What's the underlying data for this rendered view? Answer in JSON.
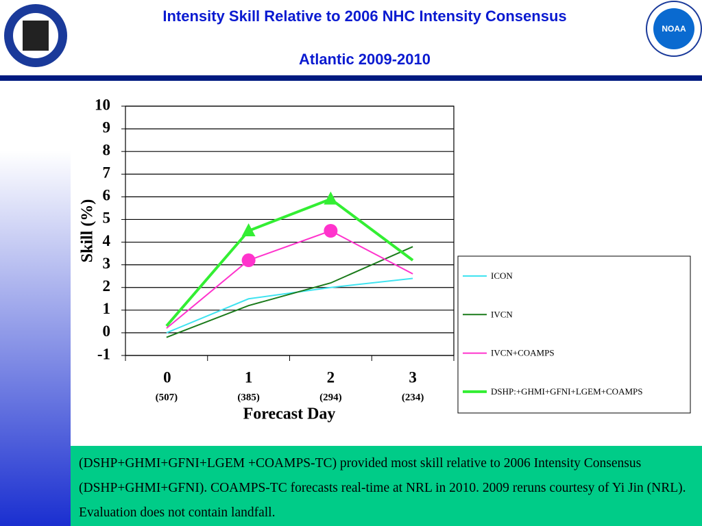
{
  "header": {
    "title": "Intensity Skill Relative to 2006 NHC Intensity Consensus",
    "subtitle": "Atlantic 2009-2010",
    "logo_right": "NOAA"
  },
  "chart_data": {
    "type": "line",
    "ylabel": "Skill (%)",
    "xlabel": "Forecast Day",
    "categories": [
      "0",
      "1",
      "2",
      "3"
    ],
    "category_sublabels": [
      "(507)",
      "(385)",
      "(294)",
      "(234)"
    ],
    "ylim": [
      -1,
      10
    ],
    "yticks": [
      -1,
      0,
      1,
      2,
      3,
      4,
      5,
      6,
      7,
      8,
      9,
      10
    ],
    "grid": true,
    "series": [
      {
        "name": "ICON",
        "color": "#3fe3f0",
        "width": 2,
        "values": [
          0.0,
          1.5,
          2.0,
          2.4
        ]
      },
      {
        "name": "IVCN",
        "color": "#1a7a1a",
        "width": 2,
        "values": [
          -0.2,
          1.2,
          2.2,
          3.8
        ]
      },
      {
        "name": "IVCN+COAMPS",
        "color": "#ff33cc",
        "width": 2,
        "marker": "circle",
        "marker_indices": [
          1,
          2
        ],
        "values": [
          0.2,
          3.2,
          4.5,
          2.6
        ]
      },
      {
        "name": "DSHP:+GHMI+GFNI+LGEM+COAMPS",
        "color": "#33ee33",
        "width": 4,
        "marker": "triangle",
        "marker_indices": [
          1,
          2
        ],
        "values": [
          0.3,
          4.5,
          5.9,
          3.2
        ]
      }
    ]
  },
  "note": {
    "text": "(DSHP+GHMI+GFNI+LGEM +COAMPS-TC) provided most skill relative to 2006 Intensity Consensus (DSHP+GHMI+GFNI).  COAMPS-TC forecasts real-time at NRL in 2010.  2009 reruns courtesy of Yi Jin (NRL).  Evaluation does not contain landfall."
  }
}
